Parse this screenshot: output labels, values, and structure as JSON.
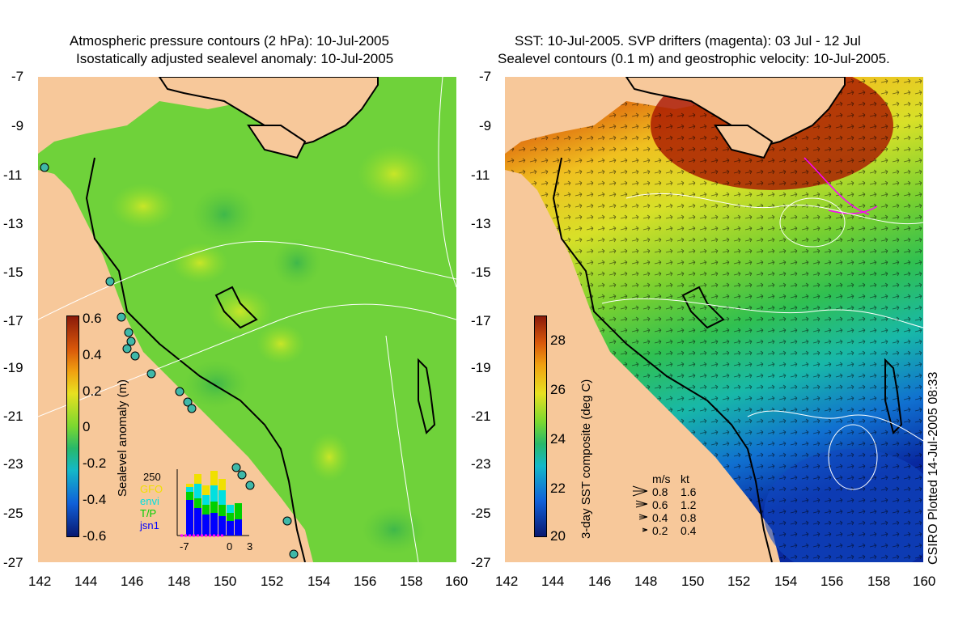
{
  "left_panel": {
    "title_line1": "Atmospheric pressure contours (2 hPa): 10-Jul-2005",
    "title_line2": "Isostatically adjusted sealevel anomaly: 10-Jul-2005",
    "colorbar_label": "Sealevel anomaly (m)",
    "colorbar_ticks": [
      "0.6",
      "0.4",
      "0.2",
      "0",
      "-0.2",
      "-0.4",
      "-0.6"
    ],
    "inset": {
      "count_label": "250",
      "legend": [
        "GFO",
        "envi",
        "T/P",
        "jsn1"
      ],
      "legend_colors": [
        "#f0e000",
        "#00e0e0",
        "#00d000",
        "#0000ff"
      ],
      "x_ticks": [
        "-7",
        "0",
        "3"
      ]
    }
  },
  "right_panel": {
    "title_line1": "SST: 10-Jul-2005. SVP drifters (magenta): 03 Jul - 12 Jul",
    "title_line2": "Sealevel contours (0.1 m) and geostrophic velocity: 10-Jul-2005.",
    "colorbar_label": "3-day SST composite (deg C)",
    "colorbar_ticks": [
      "28",
      "26",
      "24",
      "22",
      "20"
    ],
    "velocity_legend": {
      "header_ms": "m/s",
      "header_kt": "kt",
      "rows": [
        {
          "ms": "0.8",
          "kt": "1.6"
        },
        {
          "ms": "0.6",
          "kt": "1.2"
        },
        {
          "ms": "0.4",
          "kt": "0.8"
        },
        {
          "ms": "0.2",
          "kt": "0.4"
        }
      ]
    }
  },
  "axes": {
    "lat_ticks": [
      "-7",
      "-9",
      "-11",
      "-13",
      "-15",
      "-17",
      "-19",
      "-21",
      "-23",
      "-25",
      "-27"
    ],
    "lon_ticks": [
      "142",
      "144",
      "146",
      "148",
      "150",
      "152",
      "154",
      "156",
      "158",
      "160"
    ]
  },
  "credit": "CSIRO Plotted 14-Jul-2005 08:33",
  "colors": {
    "land": "#f7c89a",
    "ocean_green": "#6fd23a",
    "coast": "#000000"
  }
}
